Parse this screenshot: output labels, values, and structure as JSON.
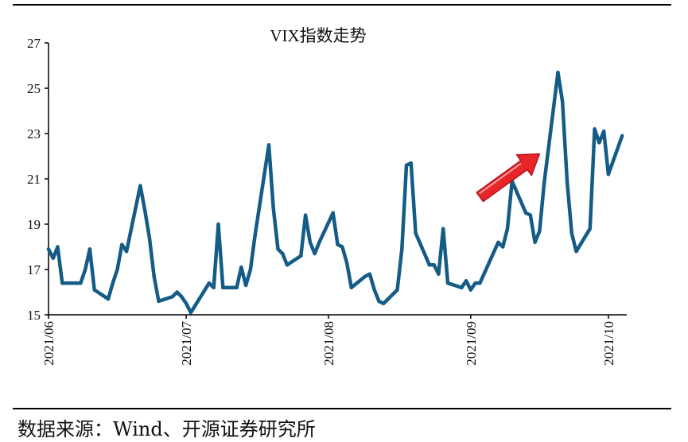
{
  "chart_data": {
    "type": "line",
    "title": "VIX指数走势",
    "xlabel": "",
    "ylabel": "",
    "ylim": [
      15,
      27
    ],
    "yticks": [
      15,
      17,
      19,
      21,
      23,
      25,
      27
    ],
    "xlim": [
      "2021-06-01",
      "2021-10-05"
    ],
    "xtick_labels": [
      "2021/06",
      "2021/07",
      "2021/08",
      "2021/09",
      "2021/10"
    ],
    "xtick_dates": [
      "2021-06-01",
      "2021-07-01",
      "2021-08-01",
      "2021-09-01",
      "2021-10-01"
    ],
    "grid": false,
    "legend": "none",
    "line_color": "#145C86",
    "annotation_arrow": {
      "color": "#E8262A",
      "from": [
        "2021-09-03",
        20.2
      ],
      "to": [
        "2021-09-16",
        22.1
      ]
    },
    "series": [
      {
        "name": "",
        "x": [
          "2021-06-01",
          "2021-06-02",
          "2021-06-03",
          "2021-06-04",
          "2021-06-07",
          "2021-06-08",
          "2021-06-09",
          "2021-06-10",
          "2021-06-11",
          "2021-06-14",
          "2021-06-15",
          "2021-06-16",
          "2021-06-17",
          "2021-06-18",
          "2021-06-21",
          "2021-06-22",
          "2021-06-23",
          "2021-06-24",
          "2021-06-25",
          "2021-06-28",
          "2021-06-29",
          "2021-06-30",
          "2021-07-01",
          "2021-07-02",
          "2021-07-06",
          "2021-07-07",
          "2021-07-08",
          "2021-07-09",
          "2021-07-12",
          "2021-07-13",
          "2021-07-14",
          "2021-07-15",
          "2021-07-16",
          "2021-07-19",
          "2021-07-20",
          "2021-07-21",
          "2021-07-22",
          "2021-07-23",
          "2021-07-26",
          "2021-07-27",
          "2021-07-28",
          "2021-07-29",
          "2021-07-30",
          "2021-08-02",
          "2021-08-03",
          "2021-08-04",
          "2021-08-05",
          "2021-08-06",
          "2021-08-09",
          "2021-08-10",
          "2021-08-11",
          "2021-08-12",
          "2021-08-13",
          "2021-08-16",
          "2021-08-17",
          "2021-08-18",
          "2021-08-19",
          "2021-08-20",
          "2021-08-23",
          "2021-08-24",
          "2021-08-25",
          "2021-08-26",
          "2021-08-27",
          "2021-08-30",
          "2021-08-31",
          "2021-09-01",
          "2021-09-02",
          "2021-09-03",
          "2021-09-07",
          "2021-09-08",
          "2021-09-09",
          "2021-09-10",
          "2021-09-13",
          "2021-09-14",
          "2021-09-15",
          "2021-09-16",
          "2021-09-17",
          "2021-09-20",
          "2021-09-21",
          "2021-09-22",
          "2021-09-23",
          "2021-09-24",
          "2021-09-27",
          "2021-09-28",
          "2021-09-29",
          "2021-09-30",
          "2021-10-01",
          "2021-10-04"
        ],
        "values": [
          17.9,
          17.5,
          18.0,
          16.4,
          16.4,
          16.4,
          17.0,
          17.9,
          16.1,
          15.7,
          16.4,
          17.0,
          18.1,
          17.8,
          20.7,
          19.6,
          18.4,
          16.7,
          15.6,
          15.8,
          16.0,
          15.8,
          15.5,
          15.1,
          16.4,
          16.2,
          19.0,
          16.2,
          16.2,
          17.1,
          16.3,
          17.0,
          18.5,
          22.5,
          19.7,
          17.9,
          17.7,
          17.2,
          17.6,
          19.4,
          18.2,
          17.7,
          18.2,
          19.5,
          18.1,
          18.0,
          17.3,
          16.2,
          16.7,
          16.8,
          16.1,
          15.6,
          15.5,
          16.1,
          17.9,
          21.6,
          21.7,
          18.6,
          17.2,
          17.2,
          16.8,
          18.8,
          16.4,
          16.2,
          16.5,
          16.1,
          16.4,
          16.4,
          18.2,
          18.0,
          18.8,
          20.9,
          19.5,
          19.4,
          18.2,
          18.7,
          20.8,
          25.7,
          24.4,
          20.9,
          18.6,
          17.8,
          18.8,
          23.2,
          22.6,
          23.1,
          21.2,
          22.9
        ]
      }
    ]
  },
  "source_text": "数据来源：Wind、开源证券研究所"
}
